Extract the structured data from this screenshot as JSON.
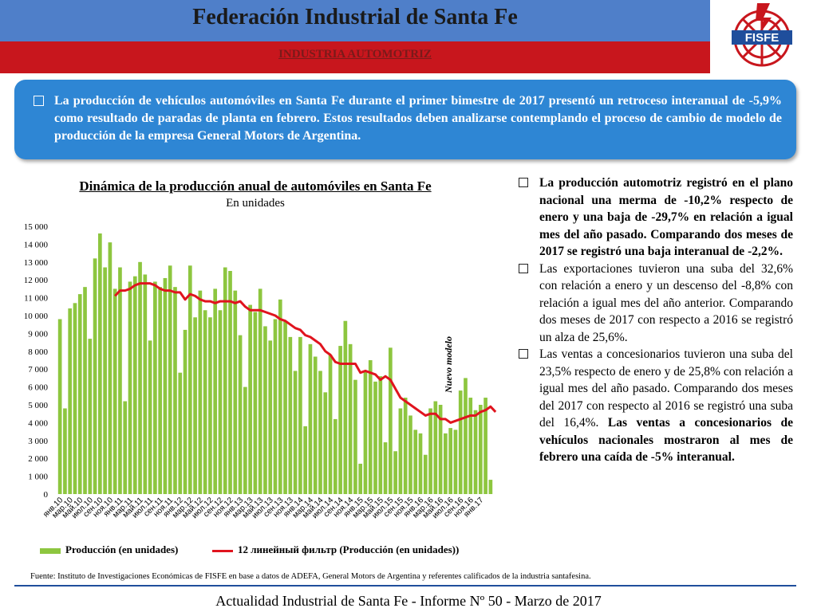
{
  "header": {
    "title": "Federación Industrial de Santa Fe",
    "subtitle": "INDUSTRIA AUTOMOTRIZ",
    "logo_text": "FISFE"
  },
  "intro": {
    "text": "La producción de vehículos automóviles en Santa Fe durante el primer bimestre de 2017 presentó un retroceso interanual de -5,9% como resultado de paradas de planta en febrero. Estos resultados deben analizarse contemplando el proceso de cambio de modelo de producción de la empresa General Motors de Argentina."
  },
  "chart": {
    "annotation": "Nuevo modelo",
    "legend_bar": "Producción (en unidades)",
    "legend_line": "12 линейный фильтр (Producción (en unidades))"
  },
  "chart_data": {
    "type": "bar",
    "title": "Dinámica de la producción anual de automóviles en Santa Fe",
    "subtitle": "En unidades",
    "xlabel": "",
    "ylabel": "",
    "ylim": [
      0,
      15000
    ],
    "yticks": [
      "0",
      "1 000",
      "2 000",
      "3 000",
      "4 000",
      "5 000",
      "6 000",
      "7 000",
      "8 000",
      "9 000",
      "10 000",
      "11 000",
      "12 000",
      "13 000",
      "14 000",
      "15 000"
    ],
    "grid": false,
    "legend_position": "bottom",
    "tick_labels": [
      "янв.10",
      "мар.10",
      "май.10",
      "июл.10",
      "сен.10",
      "ноя.10",
      "янв.11",
      "мар.11",
      "май.11",
      "июл.11",
      "сен.11",
      "ноя.11",
      "янв.12",
      "мар.12",
      "май.12",
      "июл.12",
      "сен.12",
      "ноя.12",
      "янв.13",
      "мар.13",
      "май.13",
      "июл.13",
      "сен.13",
      "ноя.13",
      "янв.14",
      "мар.14",
      "май.14",
      "июл.14",
      "сен.14",
      "ноя.14",
      "янв.15",
      "мар.15",
      "май.15",
      "июл.15",
      "сен.15",
      "ноя.15",
      "янв.16",
      "мар.16",
      "май.16",
      "июл.16",
      "сен.16",
      "ноя.16",
      "янв.17"
    ],
    "series": [
      {
        "name": "Producción (en unidades)",
        "type": "bar",
        "color": "#8dc63f",
        "values": [
          9800,
          4800,
          10400,
          10700,
          11200,
          11600,
          8700,
          13200,
          14600,
          12700,
          14100,
          11500,
          12700,
          5200,
          11900,
          12200,
          13000,
          12300,
          8600,
          11900,
          11600,
          12100,
          12800,
          11600,
          6800,
          9200,
          12800,
          9900,
          11400,
          10300,
          9900,
          11500,
          10300,
          12700,
          12500,
          11400,
          8900,
          6000,
          10600,
          10200,
          11500,
          9400,
          8600,
          9800,
          10900,
          9700,
          8800,
          6900,
          8800,
          3800,
          8400,
          7700,
          6900,
          5700,
          7800,
          4200,
          8300,
          9700,
          8400,
          6400,
          1700,
          6900,
          7500,
          6300,
          6600,
          2900,
          8200,
          2400,
          4800,
          5400,
          4400,
          3600,
          3400,
          2200,
          4800,
          5200,
          5000,
          3400,
          3700,
          3600,
          5800,
          6500,
          5400,
          4700,
          5000,
          5400,
          800
        ]
      },
      {
        "name": "12 линейный фильтр (Producción (en unidades))",
        "type": "line",
        "color": "#e0141e",
        "start_index": 11,
        "values": [
          11100,
          11400,
          11400,
          11500,
          11700,
          11800,
          11800,
          11800,
          11700,
          11500,
          11400,
          11400,
          11300,
          11300,
          10900,
          11200,
          11100,
          10900,
          10800,
          10800,
          10700,
          10800,
          10800,
          10800,
          10700,
          10800,
          10500,
          10300,
          10300,
          10300,
          10200,
          10100,
          10000,
          9800,
          9700,
          9500,
          9300,
          9200,
          8900,
          8800,
          8600,
          8400,
          8000,
          7800,
          7400,
          7300,
          7300,
          7300,
          7300,
          6800,
          6900,
          6800,
          6700,
          6400,
          6600,
          6400,
          5900,
          5400,
          5200,
          5000,
          4800,
          4600,
          4400,
          4500,
          4500,
          4200,
          4200,
          4000,
          4100,
          4200,
          4300,
          4400,
          4400,
          4600,
          4700,
          4900,
          4600
        ]
      }
    ]
  },
  "right_column": {
    "item1": "La producción automotriz registró en el plano nacional una merma de -10,2% respecto de enero y una baja de -29,7% en relación a igual mes del año pasado. Comparando dos meses de 2017 se registró una baja interanual de -2,2%.",
    "item2": "Las exportaciones tuvieron una suba del 32,6% con relación a enero y un descenso del -8,8% con relación a igual mes del año anterior. Comparando dos meses de 2017 con respecto a 2016 se registró un alza de 25,6%.",
    "item3_a": "Las ventas a concesionarios tuvieron una suba del 23,5% respecto de enero y de 25,8% con relación a igual mes del año pasado. Comparando dos meses del 2017 con respecto al 2016 se registró una suba del 16,4%.",
    "item3_b": "Las ventas a concesionarios de vehículos nacionales mostraron al mes de febrero una caída de -5% interanual."
  },
  "source": "Fuente: Instituto de Investigaciones Económicas de FISFE en base a datos de ADEFA, General Motors de Argentina y referentes calificados de la industria santafesina.",
  "footer": "Actualidad Industrial de Santa Fe - Informe Nº 50 - Marzo de 2017"
}
